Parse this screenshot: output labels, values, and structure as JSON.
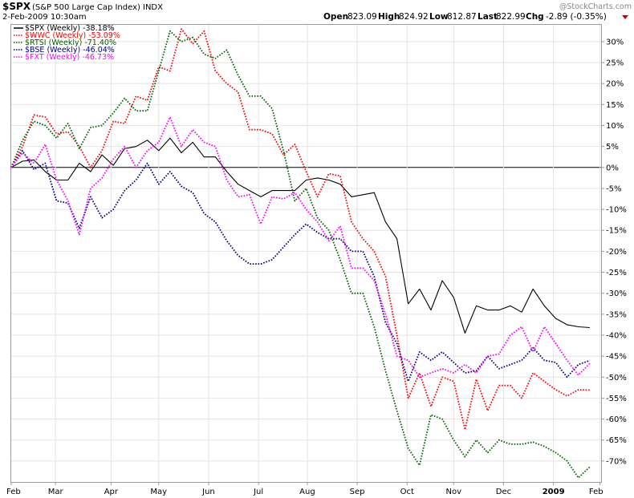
{
  "header": {
    "symbol": "$SPX",
    "name": "(S&P 500 Large Cap Index)",
    "exchange": "INDX",
    "datetime": "2-Feb-2009 10:30am",
    "open_label": "Open",
    "open": "823.09",
    "high_label": "High",
    "high": "824.92",
    "low_label": "Low",
    "low": "812.87",
    "last_label": "Last",
    "last": "822.99",
    "chg_label": "Chg",
    "chg": "-2.89 (-0.35%)",
    "watermark": "@StockCharts.com"
  },
  "chart_data": {
    "type": "line",
    "title": "$SPX (S&P 500 Large Cap Index) INDX",
    "ylim": [
      -75,
      34
    ],
    "xlim": [
      0,
      52
    ],
    "y_ticks": [
      {
        "value": 30,
        "label": "30%"
      },
      {
        "value": 25,
        "label": "25%"
      },
      {
        "value": 20,
        "label": "20%"
      },
      {
        "value": 15,
        "label": "15%"
      },
      {
        "value": 10,
        "label": "10%"
      },
      {
        "value": 5,
        "label": "5%"
      },
      {
        "value": 0,
        "label": "0%"
      },
      {
        "value": -5,
        "label": "-5%"
      },
      {
        "value": -10,
        "label": "-10%"
      },
      {
        "value": -15,
        "label": "-15%"
      },
      {
        "value": -20,
        "label": "-20%"
      },
      {
        "value": -25,
        "label": "-25%"
      },
      {
        "value": -30,
        "label": "-30%"
      },
      {
        "value": -35,
        "label": "-35%"
      },
      {
        "value": -40,
        "label": "-40%"
      },
      {
        "value": -45,
        "label": "-45%"
      },
      {
        "value": -50,
        "label": "-50%"
      },
      {
        "value": -55,
        "label": "-55%"
      },
      {
        "value": -60,
        "label": "-60%"
      },
      {
        "value": -65,
        "label": "-65%"
      },
      {
        "value": -70,
        "label": "-70%"
      }
    ],
    "x_ticks": [
      {
        "week": 0,
        "label": "Feb",
        "bold": false
      },
      {
        "week": 3.9,
        "label": "Mar",
        "bold": false
      },
      {
        "week": 8.8,
        "label": "Apr",
        "bold": false
      },
      {
        "week": 13,
        "label": "May",
        "bold": false
      },
      {
        "week": 17.4,
        "label": "Jun",
        "bold": false
      },
      {
        "week": 21.8,
        "label": "Jul",
        "bold": false
      },
      {
        "week": 26.1,
        "label": "Aug",
        "bold": false
      },
      {
        "week": 30.5,
        "label": "Sep",
        "bold": false
      },
      {
        "week": 34.9,
        "label": "Oct",
        "bold": false
      },
      {
        "week": 39,
        "label": "Nov",
        "bold": false
      },
      {
        "week": 43.4,
        "label": "Dec",
        "bold": false
      },
      {
        "week": 47.8,
        "label": "2009",
        "bold": true
      },
      {
        "week": 51.9,
        "label": "Feb",
        "bold": false
      }
    ],
    "legend_position": "top-left",
    "series": [
      {
        "name": "$SPX (Weekly) -38.18%",
        "color": "#000000",
        "style": "solid",
        "values": [
          0,
          1.5,
          1.8,
          -1,
          -3,
          -3,
          1,
          -1,
          3,
          0.5,
          4.5,
          5,
          6.5,
          4,
          7,
          3.5,
          6,
          2.5,
          2.5,
          -1,
          -4,
          -5.5,
          -7,
          -5.5,
          -5.5,
          -5.5,
          -3,
          -2.5,
          -3,
          -4,
          -7,
          -6.5,
          -6,
          -13,
          -17,
          -32.5,
          -29,
          -34,
          -27,
          -31,
          -39.5,
          -33,
          -34,
          -34,
          -33,
          -34.5,
          -29,
          -33,
          -36,
          -37.5,
          -38,
          -38.18
        ]
      },
      {
        "name": "$WWC (Weekly) -53.09%",
        "color": "#ff0000",
        "style": "dotted",
        "values": [
          0,
          5,
          12.5,
          12,
          8,
          8.5,
          5,
          0,
          4,
          11,
          10.5,
          17,
          16,
          24,
          23,
          33,
          29.5,
          32.5,
          23,
          20,
          18,
          9,
          9,
          8,
          3,
          5.5,
          -1,
          -7,
          -1.5,
          -2,
          -13,
          -17,
          -20,
          -26,
          -40,
          -55,
          -49,
          -57,
          -50,
          -51,
          -62.5,
          -50.5,
          -58,
          -52,
          -52,
          -55,
          -49,
          -51,
          -53,
          -54.5,
          -53,
          -53.09
        ]
      },
      {
        "name": "$RTSI (Weekly) -71.40%",
        "color": "#006400",
        "style": "dotted",
        "values": [
          0,
          6.5,
          11,
          10,
          7,
          10.5,
          4.5,
          9.5,
          10,
          13,
          16.5,
          13.5,
          13.5,
          23,
          32.5,
          30,
          31,
          27,
          26,
          28,
          22,
          17,
          17,
          14,
          4,
          -8,
          -5,
          -12,
          -15,
          -22,
          -30,
          -30,
          -38,
          -48.5,
          -58,
          -67,
          -71,
          -59,
          -60,
          -65,
          -69,
          -65,
          -68,
          -65,
          -66,
          -66,
          -65.5,
          -66.5,
          -68,
          -70,
          -74,
          -71.4
        ]
      },
      {
        "name": "$BSE (Weekly) -46.04%",
        "color": "#00008b",
        "style": "dotted",
        "values": [
          0,
          4,
          -0.5,
          1,
          -8,
          -8.5,
          -14.5,
          -7,
          -12,
          -10,
          -5.5,
          -3,
          1,
          -4,
          -1,
          -4.5,
          -6,
          -11,
          -13,
          -17.5,
          -21,
          -23,
          -23,
          -22,
          -19,
          -16,
          -13.5,
          -15.5,
          -17,
          -17,
          -20,
          -20,
          -26,
          -37,
          -42,
          -51,
          -44,
          -46,
          -44,
          -46.5,
          -49,
          -48.5,
          -45,
          -48,
          -47,
          -46,
          -43,
          -46,
          -46.5,
          -50,
          -47,
          -46.04
        ]
      },
      {
        "name": "$FXT (Weekly) -46.73%",
        "color": "#ff00ff",
        "style": "dotted",
        "values": [
          0,
          3.5,
          1,
          5.5,
          -3,
          -8,
          -16,
          -5,
          -2.5,
          2,
          5,
          0,
          4,
          6,
          12,
          5,
          9,
          6,
          5,
          -3,
          -7,
          -6.5,
          -13.5,
          -7,
          -7.5,
          -6,
          -10,
          -13,
          -17.5,
          -14,
          -24,
          -24,
          -27,
          -35,
          -45,
          -46,
          -50,
          -49,
          -48,
          -49,
          -47,
          -49,
          -45,
          -44.5,
          -40,
          -38,
          -44,
          -38,
          -42,
          -46,
          -49.5,
          -46.73
        ]
      }
    ]
  }
}
